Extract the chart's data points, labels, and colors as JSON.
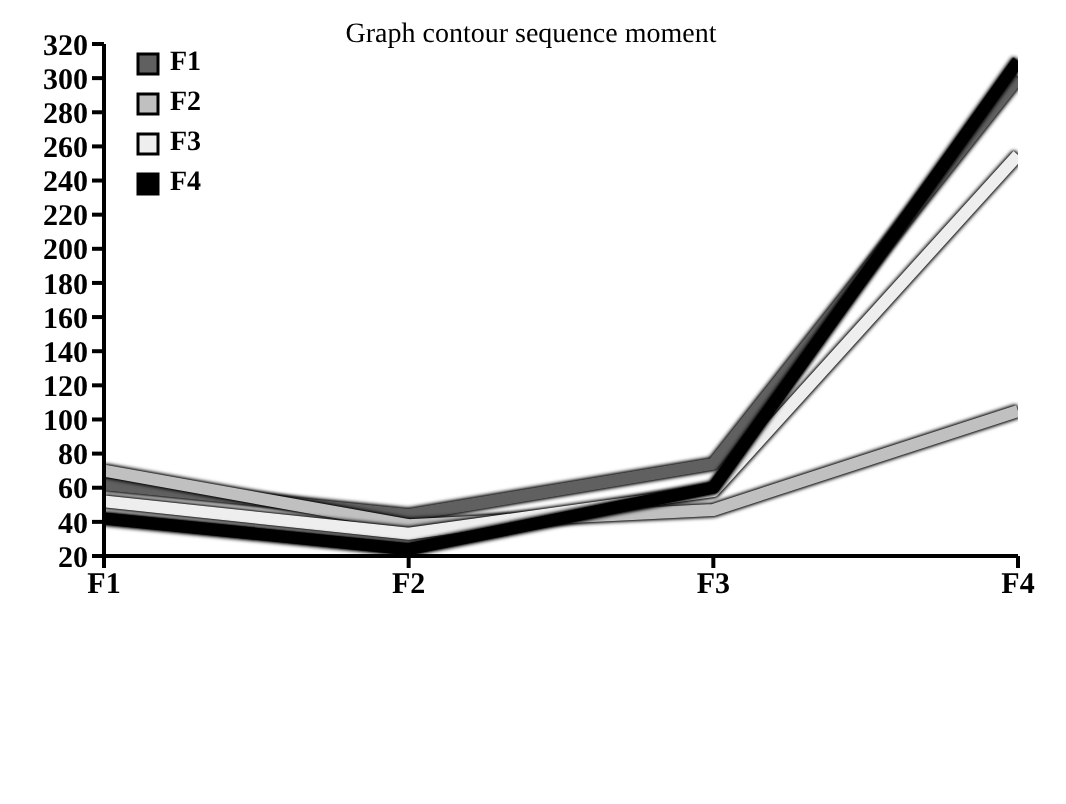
{
  "chart_data": {
    "type": "line",
    "title": "Graph contour sequence moment",
    "categories": [
      "F1",
      "F2",
      "F3",
      "F4"
    ],
    "ylim": [
      20,
      320
    ],
    "yticks": [
      20,
      40,
      60,
      80,
      100,
      120,
      140,
      160,
      180,
      200,
      220,
      240,
      260,
      280,
      300,
      320
    ],
    "grid": false,
    "legend": "top left",
    "marker": "none",
    "line_style": "solid",
    "series": [
      {
        "name": "F1",
        "color": "#606060",
        "values": [
          62,
          44,
          74,
          300
        ]
      },
      {
        "name": "F2",
        "color": "#c0c0c0",
        "values": [
          70,
          38,
          47,
          105
        ]
      },
      {
        "name": "F3",
        "color": "#eeeeee",
        "values": [
          52,
          33,
          58,
          255
        ]
      },
      {
        "name": "F4",
        "color": "#000000",
        "values": [
          42,
          24,
          60,
          310
        ]
      }
    ]
  }
}
